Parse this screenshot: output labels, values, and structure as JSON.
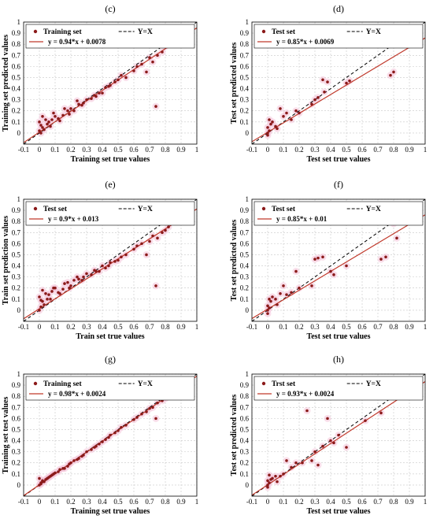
{
  "colors": {
    "point": "#8b1a1a",
    "fit_line": "#c0392b",
    "ref_line": "#000000",
    "grid": "#c8c8c8",
    "halo": "#f4c2d8"
  },
  "chart_data": [
    {
      "panel": "(c)",
      "type": "scatter",
      "xlabel": "Training set true values",
      "ylabel": "Training set predicted values",
      "xlim": [
        -0.1,
        1
      ],
      "ylim": [
        -0.1,
        1
      ],
      "xticks": [
        "-0.1",
        "0",
        "0.1",
        "0.2",
        "0.3",
        "0.4",
        "0.5",
        "0.6",
        "0.7",
        "0.8",
        "0.9",
        "1"
      ],
      "yticks": [
        "0",
        "0.1",
        "0.2",
        "0.3",
        "0.4",
        "0.5",
        "0.6",
        "0.7",
        "0.8",
        "0.9",
        "1"
      ],
      "grid": true,
      "legend_position": "top-left",
      "series": [
        {
          "name": "Training set",
          "kind": "points",
          "x": [
            0.0,
            0.01,
            0.02,
            0.0,
            0.03,
            0.05,
            0.04,
            0.06,
            0.08,
            0.1,
            0.12,
            0.15,
            0.18,
            0.2,
            0.22,
            0.25,
            0.28,
            0.3,
            0.33,
            0.35,
            0.38,
            0.4,
            0.42,
            0.45,
            0.48,
            0.5,
            0.52,
            0.55,
            0.6,
            0.62,
            0.65,
            0.7,
            0.72,
            0.75,
            0.78,
            0.8,
            0.82,
            0.74,
            0.68,
            0.02,
            0.01,
            0.07,
            0.09,
            0.13,
            0.16,
            0.19,
            0.24,
            0.27,
            0.36,
            0.44
          ],
          "y": [
            0.02,
            0.0,
            0.05,
            0.1,
            0.03,
            0.08,
            0.12,
            0.1,
            0.12,
            0.15,
            0.13,
            0.16,
            0.2,
            0.22,
            0.2,
            0.26,
            0.27,
            0.3,
            0.31,
            0.34,
            0.36,
            0.36,
            0.41,
            0.43,
            0.46,
            0.48,
            0.52,
            0.5,
            0.56,
            0.6,
            0.62,
            0.68,
            0.64,
            0.7,
            0.73,
            0.78,
            0.8,
            0.24,
            0.55,
            0.15,
            0.07,
            0.06,
            0.18,
            0.11,
            0.22,
            0.17,
            0.29,
            0.25,
            0.33,
            0.42
          ]
        },
        {
          "name": "y = 0.94*x + 0.0078",
          "kind": "fit",
          "slope": 0.94,
          "intercept": 0.0078
        },
        {
          "name": "Y=X",
          "kind": "reference",
          "slope": 1,
          "intercept": 0
        }
      ]
    },
    {
      "panel": "(d)",
      "type": "scatter",
      "xlabel": "Test set true values",
      "ylabel": "Test set predicted values",
      "xlim": [
        -0.1,
        1
      ],
      "ylim": [
        -0.1,
        1
      ],
      "xticks": [
        "-0.1",
        "0",
        "0.1",
        "0.2",
        "0.3",
        "0.4",
        "0.5",
        "0.6",
        "0.7",
        "0.8",
        "0.9",
        "1"
      ],
      "yticks": [
        "0",
        "0.1",
        "0.2",
        "0.3",
        "0.4",
        "0.5",
        "0.6",
        "0.7",
        "0.8",
        "0.9",
        "1"
      ],
      "grid": true,
      "legend_position": "top-left",
      "series": [
        {
          "name": "Test set",
          "kind": "points",
          "x": [
            0.0,
            0.0,
            0.01,
            0.02,
            0.0,
            0.03,
            0.05,
            0.08,
            0.1,
            0.12,
            0.15,
            0.18,
            0.2,
            0.28,
            0.3,
            0.32,
            0.35,
            0.36,
            0.38,
            0.5,
            0.52,
            0.78,
            0.8,
            0.01,
            0.06
          ],
          "y": [
            0.0,
            0.05,
            0.02,
            0.08,
            -0.02,
            0.1,
            0.06,
            0.22,
            0.15,
            0.18,
            0.12,
            0.2,
            0.18,
            0.26,
            0.3,
            0.32,
            0.48,
            0.37,
            0.46,
            0.45,
            0.47,
            0.52,
            0.55,
            0.12,
            0.04
          ]
        },
        {
          "name": "y = 0.85*x + 0.0069",
          "kind": "fit",
          "slope": 0.85,
          "intercept": 0.0069
        },
        {
          "name": "Y=X",
          "kind": "reference",
          "slope": 1,
          "intercept": 0
        }
      ]
    },
    {
      "panel": "(e)",
      "type": "scatter",
      "xlabel": "Train set true values",
      "ylabel": "Train set prediction values",
      "xlim": [
        -0.1,
        1
      ],
      "ylim": [
        -0.1,
        1
      ],
      "xticks": [
        "-0.1",
        "0",
        "0.1",
        "0.2",
        "0.3",
        "0.4",
        "0.5",
        "0.6",
        "0.7",
        "0.8",
        "0.9",
        "1"
      ],
      "yticks": [
        "0",
        "0.1",
        "0.2",
        "0.3",
        "0.4",
        "0.5",
        "0.6",
        "0.7",
        "0.8",
        "0.9",
        "1"
      ],
      "grid": true,
      "legend_position": "top-left",
      "series": [
        {
          "name": "Test set",
          "kind": "points",
          "x": [
            0.0,
            0.01,
            0.02,
            0.0,
            0.03,
            0.05,
            0.04,
            0.06,
            0.08,
            0.1,
            0.12,
            0.15,
            0.18,
            0.2,
            0.22,
            0.25,
            0.28,
            0.3,
            0.33,
            0.35,
            0.38,
            0.4,
            0.42,
            0.45,
            0.48,
            0.5,
            0.52,
            0.55,
            0.6,
            0.62,
            0.65,
            0.7,
            0.72,
            0.75,
            0.78,
            0.8,
            0.82,
            0.74,
            0.68,
            0.02,
            0.01,
            0.07,
            0.09,
            0.13,
            0.16,
            0.19,
            0.24,
            0.27,
            0.36,
            0.44
          ],
          "y": [
            0.0,
            0.03,
            0.08,
            0.12,
            0.05,
            0.1,
            0.15,
            0.14,
            0.17,
            0.2,
            0.16,
            0.19,
            0.25,
            0.22,
            0.27,
            0.28,
            0.3,
            0.33,
            0.32,
            0.36,
            0.35,
            0.4,
            0.38,
            0.43,
            0.44,
            0.45,
            0.48,
            0.5,
            0.55,
            0.58,
            0.6,
            0.62,
            0.67,
            0.65,
            0.7,
            0.72,
            0.75,
            0.22,
            0.5,
            0.18,
            0.09,
            0.1,
            0.2,
            0.15,
            0.24,
            0.2,
            0.3,
            0.27,
            0.35,
            0.4
          ]
        },
        {
          "name": "y = 0.9*x + 0.013",
          "kind": "fit",
          "slope": 0.9,
          "intercept": 0.013
        },
        {
          "name": "Y=X",
          "kind": "reference",
          "slope": 1,
          "intercept": 0
        }
      ]
    },
    {
      "panel": "(f)",
      "type": "scatter",
      "xlabel": "Test set true values",
      "ylabel": "Test set predicted values",
      "xlim": [
        -0.1,
        1
      ],
      "ylim": [
        -0.1,
        1
      ],
      "xticks": [
        "-0.1",
        "0",
        "0.1",
        "0.2",
        "0.3",
        "0.4",
        "0.5",
        "0.6",
        "0.7",
        "0.8",
        "0.9",
        "1"
      ],
      "yticks": [
        "0",
        "0.1",
        "0.2",
        "0.3",
        "0.4",
        "0.5",
        "0.6",
        "0.7",
        "0.8",
        "0.9",
        "1"
      ],
      "grid": true,
      "legend_position": "top-left",
      "series": [
        {
          "name": "Test set",
          "kind": "points",
          "x": [
            0.0,
            0.0,
            0.01,
            0.02,
            0.0,
            0.03,
            0.05,
            0.08,
            0.1,
            0.12,
            0.15,
            0.18,
            0.2,
            0.28,
            0.3,
            0.32,
            0.35,
            0.4,
            0.42,
            0.5,
            0.72,
            0.75,
            0.8,
            0.82,
            0.01,
            0.06
          ],
          "y": [
            0.0,
            0.04,
            0.02,
            0.08,
            -0.03,
            0.12,
            0.1,
            0.15,
            0.22,
            0.14,
            0.16,
            0.35,
            0.2,
            0.22,
            0.46,
            0.47,
            0.48,
            0.35,
            0.32,
            0.4,
            0.46,
            0.48,
            0.78,
            0.65,
            0.1,
            0.05
          ]
        },
        {
          "name": "y = 0.85*x + 0.01",
          "kind": "fit",
          "slope": 0.85,
          "intercept": 0.01
        },
        {
          "name": "Y=X",
          "kind": "reference",
          "slope": 1,
          "intercept": 0
        }
      ]
    },
    {
      "panel": "(g)",
      "type": "scatter",
      "xlabel": "Training set true values",
      "ylabel": "Training set test values",
      "xlim": [
        -0.1,
        1
      ],
      "ylim": [
        -0.1,
        1
      ],
      "xticks": [
        "-0.1",
        "0",
        "0.1",
        "0.2",
        "0.3",
        "0.4",
        "0.5",
        "0.6",
        "0.7",
        "0.8",
        "0.9",
        "1"
      ],
      "yticks": [
        "0",
        "0.1",
        "0.2",
        "0.3",
        "0.4",
        "0.5",
        "0.6",
        "0.7",
        "0.8",
        "0.9",
        "1"
      ],
      "grid": true,
      "legend_position": "top-left",
      "series": [
        {
          "name": "Training set",
          "kind": "points",
          "x": [
            0.0,
            0.01,
            0.02,
            0.0,
            0.03,
            0.05,
            0.04,
            0.06,
            0.08,
            0.1,
            0.12,
            0.15,
            0.18,
            0.2,
            0.22,
            0.25,
            0.28,
            0.3,
            0.33,
            0.35,
            0.38,
            0.4,
            0.42,
            0.45,
            0.48,
            0.5,
            0.52,
            0.55,
            0.6,
            0.62,
            0.65,
            0.7,
            0.72,
            0.75,
            0.78,
            0.8,
            0.82,
            0.74,
            0.68,
            0.02,
            0.01,
            0.07,
            0.09,
            0.13,
            0.16,
            0.19,
            0.24,
            0.27,
            0.36,
            0.44,
            0.85
          ],
          "y": [
            0.0,
            0.02,
            0.04,
            0.06,
            0.03,
            0.06,
            0.05,
            0.07,
            0.09,
            0.11,
            0.12,
            0.15,
            0.17,
            0.2,
            0.22,
            0.24,
            0.27,
            0.3,
            0.32,
            0.34,
            0.37,
            0.39,
            0.41,
            0.45,
            0.47,
            0.49,
            0.52,
            0.54,
            0.59,
            0.61,
            0.64,
            0.69,
            0.7,
            0.74,
            0.76,
            0.78,
            0.8,
            0.6,
            0.66,
            0.03,
            0.01,
            0.08,
            0.1,
            0.14,
            0.15,
            0.19,
            0.23,
            0.26,
            0.35,
            0.43,
            0.9
          ]
        },
        {
          "name": "y = 0.98*x + 0.0024",
          "kind": "fit",
          "slope": 0.98,
          "intercept": 0.0024
        },
        {
          "name": "Y=X",
          "kind": "reference",
          "slope": 1,
          "intercept": 0
        }
      ]
    },
    {
      "panel": "(h)",
      "type": "scatter",
      "xlabel": "Test set true values",
      "ylabel": "Test set predicted values",
      "xlim": [
        -0.1,
        1
      ],
      "ylim": [
        -0.1,
        1
      ],
      "xticks": [
        "-0.1",
        "0",
        "0.1",
        "0.2",
        "0.3",
        "0.4",
        "0.5",
        "0.6",
        "0.7",
        "0.8",
        "0.9",
        "1"
      ],
      "yticks": [
        "0",
        "0.1",
        "0.2",
        "0.3",
        "0.4",
        "0.5",
        "0.6",
        "0.7",
        "0.8",
        "0.9",
        "1"
      ],
      "grid": true,
      "legend_position": "top-left",
      "series": [
        {
          "name": "Trst set",
          "kind": "points",
          "x": [
            0.0,
            0.0,
            0.01,
            0.02,
            0.0,
            0.03,
            0.05,
            0.08,
            0.1,
            0.12,
            0.15,
            0.18,
            0.22,
            0.25,
            0.28,
            0.3,
            0.32,
            0.35,
            0.38,
            0.4,
            0.42,
            0.45,
            0.5,
            0.62,
            0.72,
            0.01,
            0.06
          ],
          "y": [
            0.0,
            0.04,
            0.02,
            0.05,
            -0.02,
            0.06,
            0.08,
            0.08,
            0.1,
            0.22,
            0.16,
            0.2,
            0.2,
            0.67,
            0.22,
            0.3,
            0.18,
            0.35,
            0.6,
            0.4,
            0.38,
            0.45,
            0.34,
            0.58,
            0.65,
            0.09,
            0.03
          ]
        },
        {
          "name": "y = 0.93*x + 0.0024",
          "kind": "fit",
          "slope": 0.93,
          "intercept": 0.0024
        },
        {
          "name": "Y=X",
          "kind": "reference",
          "slope": 1,
          "intercept": 0
        }
      ]
    }
  ]
}
